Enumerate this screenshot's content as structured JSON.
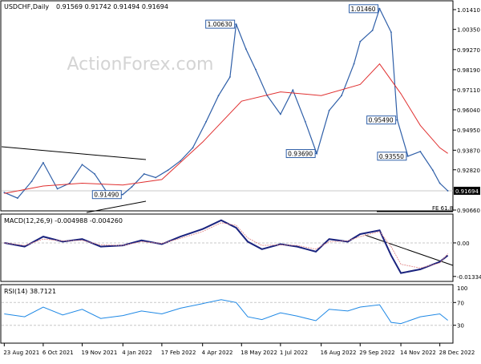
{
  "chart_data": {
    "type": "line",
    "header": {
      "symbol": "USDCHF,Daily",
      "ohlc": "0.91569 0.91742 0.91494 0.91694"
    },
    "watermark": "ActionForex.com",
    "price_axis": {
      "ylim": [
        0.9066,
        1.0141
      ],
      "ticks": [
        "1.01410",
        "1.00350",
        "0.99270",
        "0.98190",
        "0.97110",
        "0.96040",
        "0.94950",
        "0.93870",
        "0.92820",
        "0.90660"
      ],
      "tick_values": [
        1.0141,
        1.0035,
        0.9927,
        0.9819,
        0.9711,
        0.9604,
        0.9495,
        0.9387,
        0.9282,
        0.9066
      ]
    },
    "last_price": {
      "label": "0.91694",
      "value": 0.91694
    },
    "x_axis": {
      "dates": [
        "2021-08-23",
        "2021-10-06",
        "2021-11-19",
        "2022-01-04",
        "2022-02-17",
        "2022-04-04",
        "2022-05-18",
        "2022-07-01",
        "2022-08-16",
        "2022-09-29",
        "2022-11-14",
        "2022-12-28"
      ],
      "labels": [
        "23 Aug 2021",
        "6 Oct 2021",
        "19 Nov 2021",
        "4 Jan 2022",
        "17 Feb 2022",
        "4 Apr 2022",
        "18 May 2022",
        "1 Jul 2022",
        "16 Aug 2022",
        "29 Sep 2022",
        "14 Nov 2022",
        "28 Dec 2022"
      ]
    },
    "price_series": {
      "name": "USDCHF",
      "x": [
        "2021-08-23",
        "2021-09-07",
        "2021-09-23",
        "2021-10-06",
        "2021-10-22",
        "2021-11-05",
        "2021-11-19",
        "2021-12-03",
        "2021-12-20",
        "2022-01-04",
        "2022-01-14",
        "2022-01-28",
        "2022-02-10",
        "2022-02-24",
        "2022-03-10",
        "2022-03-24",
        "2022-04-08",
        "2022-04-22",
        "2022-05-05",
        "2022-05-12",
        "2022-05-23",
        "2022-06-03",
        "2022-06-16",
        "2022-07-01",
        "2022-07-15",
        "2022-07-29",
        "2022-08-11",
        "2022-08-25",
        "2022-09-08",
        "2022-09-22",
        "2022-09-29",
        "2022-10-13",
        "2022-10-21",
        "2022-11-03",
        "2022-11-10",
        "2022-11-22",
        "2022-12-06",
        "2022-12-20",
        "2022-12-28",
        "2023-01-06"
      ],
      "values": [
        0.916,
        0.913,
        0.922,
        0.932,
        0.918,
        0.921,
        0.931,
        0.926,
        0.914,
        0.915,
        0.919,
        0.926,
        0.924,
        0.928,
        0.933,
        0.94,
        0.954,
        0.968,
        0.978,
        1.0063,
        0.993,
        0.982,
        0.968,
        0.958,
        0.971,
        0.954,
        0.9369,
        0.96,
        0.968,
        0.985,
        0.997,
        1.003,
        1.0146,
        1.002,
        0.9549,
        0.9355,
        0.938,
        0.928,
        0.921,
        0.91694
      ]
    },
    "ma_series": {
      "x": [
        "2021-08-23",
        "2021-10-06",
        "2021-11-19",
        "2022-01-04",
        "2022-02-17",
        "2022-04-04",
        "2022-05-18",
        "2022-07-01",
        "2022-08-16",
        "2022-09-29",
        "2022-10-21",
        "2022-11-14",
        "2022-12-06",
        "2022-12-28",
        "2023-01-06"
      ],
      "values": [
        0.9155,
        0.9195,
        0.921,
        0.92,
        0.923,
        0.943,
        0.965,
        0.97,
        0.968,
        0.974,
        0.985,
        0.969,
        0.952,
        0.94,
        0.937
      ]
    },
    "price_labels": [
      {
        "label": "1.00630",
        "x": "2022-05-12",
        "value": 1.0063
      },
      {
        "label": "1.01460",
        "x": "2022-10-21",
        "value": 1.0146
      },
      {
        "label": "0.93690",
        "x": "2022-08-11",
        "value": 0.9369
      },
      {
        "label": "0.95490",
        "x": "2022-11-10",
        "value": 0.9549
      },
      {
        "label": "0.93550",
        "x": "2022-11-22",
        "value": 0.9355
      },
      {
        "label": "0.91490",
        "x": "2022-01-04",
        "value": 0.9149
      }
    ],
    "fe_label": "FE 61.8",
    "macd": {
      "header": "MACD(12,26,9) -0.004988 -0.004260",
      "ylim": [
        -0.015,
        0.0105
      ],
      "ticks": [
        "0.00",
        "-0.01334"
      ],
      "tick_values": [
        0.0,
        -0.01334
      ],
      "x": [
        "2021-08-23",
        "2021-09-15",
        "2021-10-06",
        "2021-10-28",
        "2021-11-19",
        "2021-12-10",
        "2022-01-04",
        "2022-01-25",
        "2022-02-17",
        "2022-03-10",
        "2022-04-04",
        "2022-04-25",
        "2022-05-12",
        "2022-05-25",
        "2022-06-10",
        "2022-07-01",
        "2022-07-20",
        "2022-08-10",
        "2022-08-25",
        "2022-09-15",
        "2022-09-29",
        "2022-10-21",
        "2022-11-03",
        "2022-11-14",
        "2022-12-06",
        "2022-12-28",
        "2023-01-06"
      ],
      "macd_values": [
        0.0,
        -0.0015,
        0.0025,
        0.0005,
        0.0015,
        -0.0015,
        -0.001,
        0.001,
        -0.0005,
        0.0025,
        0.0055,
        0.009,
        0.006,
        0.0005,
        -0.0025,
        -0.0005,
        -0.0015,
        -0.0035,
        0.0015,
        0.0005,
        0.0035,
        0.005,
        -0.005,
        -0.012,
        -0.0105,
        -0.0075,
        -0.005
      ],
      "signal_values": [
        0.0,
        -0.001,
        0.0015,
        0.0008,
        0.001,
        -0.0008,
        -0.001,
        0.0005,
        -0.0002,
        0.0018,
        0.0045,
        0.008,
        0.007,
        0.002,
        -0.001,
        -0.0008,
        -0.001,
        -0.0025,
        0.0005,
        0.0008,
        0.0025,
        0.0045,
        -0.0015,
        -0.0085,
        -0.01,
        -0.008,
        -0.0043
      ]
    },
    "rsi": {
      "header": "RSI(14) 38.7121",
      "ylim": [
        0,
        100
      ],
      "ticks": [
        "70",
        "30"
      ],
      "tick_values": [
        70,
        30
      ],
      "top_tick": "100",
      "x": [
        "2021-08-23",
        "2021-09-15",
        "2021-10-06",
        "2021-10-28",
        "2021-11-19",
        "2021-12-10",
        "2022-01-04",
        "2022-01-25",
        "2022-02-17",
        "2022-03-10",
        "2022-04-04",
        "2022-04-25",
        "2022-05-12",
        "2022-05-25",
        "2022-06-10",
        "2022-07-01",
        "2022-07-20",
        "2022-08-10",
        "2022-08-25",
        "2022-09-15",
        "2022-09-29",
        "2022-10-21",
        "2022-11-03",
        "2022-11-14",
        "2022-12-06",
        "2022-12-28",
        "2023-01-06"
      ],
      "values": [
        50,
        45,
        62,
        48,
        58,
        42,
        47,
        55,
        50,
        60,
        68,
        75,
        70,
        45,
        40,
        52,
        46,
        38,
        58,
        55,
        62,
        66,
        35,
        33,
        45,
        50,
        38.7121
      ]
    }
  }
}
